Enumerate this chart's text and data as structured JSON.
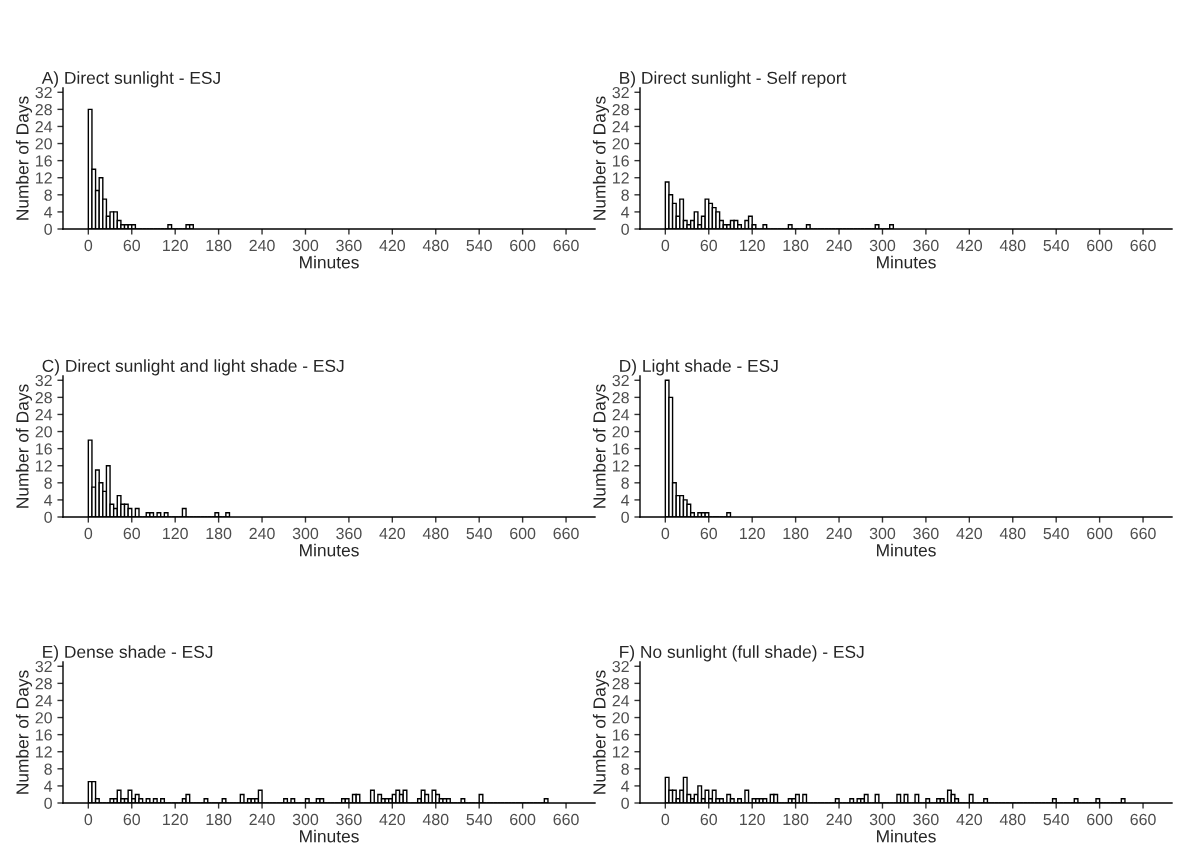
{
  "chart_data": [
    {
      "type": "histogram",
      "title": "A) Direct sunlight - ESJ",
      "xlabel": "Minutes",
      "ylabel": "Number of Days",
      "color": "#ffffff",
      "xlim": [
        -35,
        700
      ],
      "ylim": [
        0,
        33
      ],
      "xticks": [
        0,
        60,
        120,
        180,
        240,
        300,
        360,
        420,
        480,
        540,
        600,
        660
      ],
      "yticks": [
        0,
        4,
        8,
        12,
        16,
        20,
        24,
        28,
        32
      ],
      "grid": false,
      "bins": [
        0,
        5,
        10,
        15,
        20,
        25,
        30,
        35,
        40,
        45,
        50,
        55,
        60,
        65,
        70,
        75,
        80,
        85,
        90,
        95,
        100,
        105,
        110,
        115,
        120,
        125,
        130,
        135,
        140,
        145
      ],
      "values": [
        28,
        14,
        9,
        12,
        7,
        3,
        4,
        4,
        2,
        1,
        1,
        1,
        1,
        0,
        0,
        0,
        0,
        0,
        0,
        0,
        0,
        0,
        1,
        0,
        0,
        0,
        0,
        1,
        1
      ]
    },
    {
      "type": "histogram",
      "title": "B) Direct sunlight - Self report",
      "xlabel": "Minutes",
      "ylabel": "Number of Days",
      "color": "#ffffff",
      "xlim": [
        -35,
        700
      ],
      "ylim": [
        0,
        33
      ],
      "xticks": [
        0,
        60,
        120,
        180,
        240,
        300,
        360,
        420,
        480,
        540,
        600,
        660
      ],
      "yticks": [
        0,
        4,
        8,
        12,
        16,
        20,
        24,
        28,
        32
      ],
      "grid": false,
      "bins": [
        0,
        5,
        10,
        15,
        20,
        25,
        30,
        35,
        40,
        45,
        50,
        55,
        60,
        65,
        70,
        75,
        80,
        85,
        90,
        95,
        100,
        105,
        110,
        115,
        120,
        125,
        130,
        135,
        140,
        145,
        150,
        155,
        160,
        165,
        170,
        175,
        180,
        185,
        190,
        195,
        200,
        205,
        210,
        215,
        220,
        225,
        230,
        235,
        240,
        245,
        250,
        255,
        260,
        265,
        270,
        275,
        280,
        285,
        290,
        295,
        300,
        305,
        310,
        315
      ],
      "values": [
        11,
        8,
        6,
        3,
        7,
        2,
        1,
        2,
        4,
        1,
        3,
        7,
        6,
        5,
        4,
        2,
        1,
        1,
        2,
        2,
        1,
        0,
        2,
        3,
        1,
        0,
        0,
        1,
        0,
        0,
        0,
        0,
        0,
        0,
        1,
        0,
        0,
        0,
        0,
        1,
        0,
        0,
        0,
        0,
        0,
        0,
        0,
        0,
        0,
        0,
        0,
        0,
        0,
        0,
        0,
        0,
        0,
        0,
        1,
        0,
        0,
        0,
        1
      ]
    },
    {
      "type": "histogram",
      "title": "C) Direct sunlight and light shade - ESJ",
      "xlabel": "Minutes",
      "ylabel": "Number of Days",
      "color": "#ffffff",
      "xlim": [
        -35,
        700
      ],
      "ylim": [
        0,
        33
      ],
      "xticks": [
        0,
        60,
        120,
        180,
        240,
        300,
        360,
        420,
        480,
        540,
        600,
        660
      ],
      "yticks": [
        0,
        4,
        8,
        12,
        16,
        20,
        24,
        28,
        32
      ],
      "grid": false,
      "bins": [
        0,
        5,
        10,
        15,
        20,
        25,
        30,
        35,
        40,
        45,
        50,
        55,
        60,
        65,
        70,
        75,
        80,
        85,
        90,
        95,
        100,
        105,
        110,
        115,
        120,
        125,
        130,
        135,
        140,
        145,
        150,
        155,
        160,
        165,
        170,
        175,
        180,
        185,
        190,
        195
      ],
      "values": [
        18,
        7,
        11,
        8,
        6,
        12,
        3,
        2,
        5,
        3,
        3,
        2,
        0,
        2,
        0,
        0,
        1,
        1,
        0,
        1,
        0,
        1,
        0,
        0,
        0,
        0,
        2,
        0,
        0,
        0,
        0,
        0,
        0,
        0,
        0,
        1,
        0,
        0,
        1
      ]
    },
    {
      "type": "histogram",
      "title": "D) Light shade - ESJ",
      "xlabel": "Minutes",
      "ylabel": "Number of Days",
      "color": "#ffffff",
      "xlim": [
        -35,
        700
      ],
      "ylim": [
        0,
        33
      ],
      "xticks": [
        0,
        60,
        120,
        180,
        240,
        300,
        360,
        420,
        480,
        540,
        600,
        660
      ],
      "yticks": [
        0,
        4,
        8,
        12,
        16,
        20,
        24,
        28,
        32
      ],
      "grid": false,
      "bins": [
        0,
        5,
        10,
        15,
        20,
        25,
        30,
        35,
        40,
        45,
        50,
        55,
        60,
        65,
        70,
        75,
        80,
        85,
        90
      ],
      "values": [
        32,
        28,
        8,
        5,
        5,
        4,
        3,
        1,
        0,
        1,
        1,
        1,
        0,
        0,
        0,
        0,
        0,
        1
      ]
    },
    {
      "type": "histogram",
      "title": "E) Dense shade - ESJ",
      "xlabel": "Minutes",
      "ylabel": "Number of Days",
      "color": "#ffffff",
      "xlim": [
        -35,
        700
      ],
      "ylim": [
        0,
        33
      ],
      "xticks": [
        0,
        60,
        120,
        180,
        240,
        300,
        360,
        420,
        480,
        540,
        600,
        660
      ],
      "yticks": [
        0,
        4,
        8,
        12,
        16,
        20,
        24,
        28,
        32
      ],
      "grid": false,
      "bins": [
        0,
        5,
        10,
        15,
        20,
        25,
        30,
        35,
        40,
        45,
        50,
        55,
        60,
        65,
        70,
        75,
        80,
        85,
        90,
        95,
        100,
        105,
        110,
        115,
        120,
        125,
        130,
        135,
        140,
        145,
        150,
        155,
        160,
        165,
        170,
        175,
        180,
        185,
        190,
        195,
        200,
        205,
        210,
        215,
        220,
        225,
        230,
        235,
        240,
        245,
        250,
        255,
        260,
        265,
        270,
        275,
        280,
        285,
        290,
        295,
        300,
        305,
        310,
        315,
        320,
        325,
        330,
        335,
        340,
        345,
        350,
        355,
        360,
        365,
        370,
        375,
        380,
        385,
        390,
        395,
        400,
        405,
        410,
        415,
        420,
        425,
        430,
        435,
        440,
        445,
        450,
        455,
        460,
        465,
        470,
        475,
        480,
        485,
        490,
        495,
        500,
        505,
        510,
        515,
        520,
        525,
        530,
        535,
        540,
        545,
        550,
        555,
        560,
        565,
        570,
        575,
        580,
        585,
        590,
        595,
        600,
        605,
        610,
        615,
        620,
        625,
        630,
        635
      ],
      "values": [
        5,
        5,
        1,
        0,
        0,
        0,
        1,
        1,
        3,
        1,
        1,
        3,
        1,
        2,
        1,
        0,
        1,
        0,
        1,
        0,
        1,
        0,
        0,
        0,
        0,
        0,
        1,
        2,
        0,
        0,
        0,
        0,
        1,
        0,
        0,
        0,
        0,
        1,
        0,
        0,
        0,
        0,
        2,
        0,
        1,
        1,
        1,
        3,
        0,
        0,
        0,
        0,
        0,
        0,
        1,
        0,
        1,
        0,
        0,
        0,
        1,
        0,
        0,
        1,
        1,
        0,
        0,
        0,
        0,
        0,
        1,
        1,
        0,
        2,
        2,
        0,
        0,
        0,
        3,
        0,
        2,
        1,
        1,
        1,
        2,
        3,
        2,
        3,
        0,
        0,
        0,
        1,
        3,
        2,
        0,
        3,
        2,
        1,
        1,
        1,
        0,
        0,
        0,
        1,
        0,
        0,
        0,
        0,
        2,
        0,
        0,
        0,
        0,
        0,
        0,
        0,
        0,
        0,
        0,
        0,
        0,
        0,
        0,
        0,
        0,
        0,
        1
      ]
    },
    {
      "type": "histogram",
      "title": "F) No sunlight (full shade) - ESJ",
      "xlabel": "Minutes",
      "ylabel": "Number of Days",
      "color": "#ffffff",
      "xlim": [
        -35,
        700
      ],
      "ylim": [
        0,
        33
      ],
      "xticks": [
        0,
        60,
        120,
        180,
        240,
        300,
        360,
        420,
        480,
        540,
        600,
        660
      ],
      "yticks": [
        0,
        4,
        8,
        12,
        16,
        20,
        24,
        28,
        32
      ],
      "grid": false,
      "bins": [
        0,
        5,
        10,
        15,
        20,
        25,
        30,
        35,
        40,
        45,
        50,
        55,
        60,
        65,
        70,
        75,
        80,
        85,
        90,
        95,
        100,
        105,
        110,
        115,
        120,
        125,
        130,
        135,
        140,
        145,
        150,
        155,
        160,
        165,
        170,
        175,
        180,
        185,
        190,
        195,
        200,
        205,
        210,
        215,
        220,
        225,
        230,
        235,
        240,
        245,
        250,
        255,
        260,
        265,
        270,
        275,
        280,
        285,
        290,
        295,
        300,
        305,
        310,
        315,
        320,
        325,
        330,
        335,
        340,
        345,
        350,
        355,
        360,
        365,
        370,
        375,
        380,
        385,
        390,
        395,
        400,
        405,
        410,
        415,
        420,
        425,
        430,
        435,
        440,
        445,
        450,
        455,
        460,
        465,
        470,
        475,
        480,
        485,
        490,
        495,
        500,
        505,
        510,
        515,
        520,
        525,
        530,
        535,
        540,
        545,
        550,
        555,
        560,
        565,
        570,
        575,
        580,
        585,
        590,
        595,
        600,
        605,
        610,
        615,
        620,
        625,
        630,
        635
      ],
      "values": [
        6,
        3,
        3,
        1,
        3,
        6,
        2,
        1,
        2,
        4,
        1,
        3,
        1,
        3,
        1,
        1,
        0,
        2,
        1,
        0,
        1,
        0,
        3,
        0,
        1,
        1,
        1,
        1,
        0,
        2,
        2,
        0,
        0,
        0,
        1,
        1,
        2,
        0,
        2,
        0,
        0,
        0,
        0,
        0,
        0,
        0,
        0,
        1,
        0,
        0,
        0,
        1,
        0,
        1,
        1,
        2,
        0,
        0,
        2,
        0,
        0,
        0,
        0,
        0,
        2,
        0,
        2,
        0,
        0,
        2,
        0,
        0,
        1,
        0,
        0,
        1,
        1,
        0,
        3,
        2,
        1,
        0,
        0,
        0,
        2,
        0,
        0,
        0,
        1,
        0,
        0,
        0,
        0,
        0,
        0,
        0,
        0,
        0,
        0,
        0,
        0,
        0,
        0,
        0,
        0,
        0,
        0,
        1,
        0,
        0,
        0,
        0,
        0,
        1,
        0,
        0,
        0,
        0,
        0,
        1,
        0,
        0,
        0,
        0,
        0,
        0,
        1
      ]
    }
  ]
}
